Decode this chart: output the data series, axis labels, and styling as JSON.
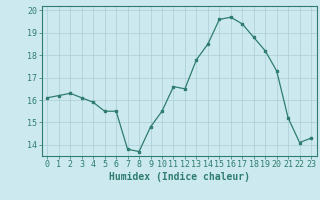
{
  "x": [
    0,
    1,
    2,
    3,
    4,
    5,
    6,
    7,
    8,
    9,
    10,
    11,
    12,
    13,
    14,
    15,
    16,
    17,
    18,
    19,
    20,
    21,
    22,
    23
  ],
  "y": [
    16.1,
    16.2,
    16.3,
    16.1,
    15.9,
    15.5,
    15.5,
    13.8,
    13.7,
    14.8,
    15.5,
    16.6,
    16.5,
    17.8,
    18.5,
    19.6,
    19.7,
    19.4,
    18.8,
    18.2,
    17.3,
    15.2,
    14.1,
    14.3
  ],
  "xlim": [
    -0.5,
    23.5
  ],
  "ylim": [
    13.5,
    20.2
  ],
  "yticks": [
    14,
    15,
    16,
    17,
    18,
    19,
    20
  ],
  "xticks": [
    0,
    1,
    2,
    3,
    4,
    5,
    6,
    7,
    8,
    9,
    10,
    11,
    12,
    13,
    14,
    15,
    16,
    17,
    18,
    19,
    20,
    21,
    22,
    23
  ],
  "xlabel": "Humidex (Indice chaleur)",
  "line_color": "#2e7d6e",
  "marker": "s",
  "marker_size": 2,
  "bg_color": "#cce9f0",
  "grid_color": "#aacdd6",
  "tick_fontsize": 6,
  "xlabel_fontsize": 7
}
